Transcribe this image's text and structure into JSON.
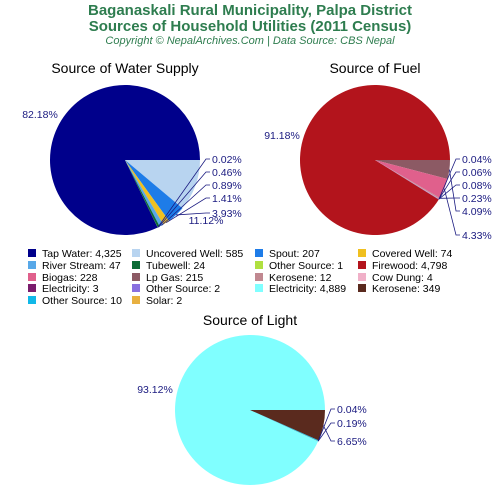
{
  "page": {
    "title_line1": "Baganaskali Rural Municipality, Palpa District",
    "title_line2": "Sources of Household Utilities (2011 Census)",
    "credit": "Copyright © NepalArchives.Com | Data Source: CBS Nepal"
  },
  "chart_data": [
    {
      "type": "pie",
      "title": "Source of Water Supply",
      "slices": [
        {
          "label": "Tap Water",
          "value": 4325,
          "percent_label": "82.18%",
          "color": "#00008b"
        },
        {
          "label": "Uncovered Well",
          "value": 585,
          "percent_label": "11.12%",
          "color": "#b8d4f0"
        },
        {
          "label": "Spout",
          "value": 207,
          "percent_label": "3.93%",
          "color": "#1e7ce8"
        },
        {
          "label": "Covered Well",
          "value": 74,
          "percent_label": "1.41%",
          "color": "#f0c020"
        },
        {
          "label": "River Stream",
          "value": 47,
          "percent_label": "0.89%",
          "color": "#58a8e8"
        },
        {
          "label": "Tubewell",
          "value": 24,
          "percent_label": "0.46%",
          "color": "#0b6b35"
        },
        {
          "label": "Other Source",
          "value": 1,
          "percent_label": "0.02%",
          "color": "#b0e040"
        }
      ]
    },
    {
      "type": "pie",
      "title": "Source of Fuel",
      "slices": [
        {
          "label": "Firewood",
          "value": 4798,
          "percent_label": "91.18%",
          "color": "#b3141c"
        },
        {
          "label": "Lp Gas",
          "value": 215,
          "percent_label": "4.09%",
          "color": "#8c5a64"
        },
        {
          "label": "Biogas",
          "value": 228,
          "percent_label": "4.33%",
          "color": "#e0608c"
        },
        {
          "label": "Kerosene",
          "value": 12,
          "percent_label": "0.23%",
          "color": "#c08890"
        },
        {
          "label": "Cow Dung",
          "value": 4,
          "percent_label": "0.08%",
          "color": "#f0b0c8"
        },
        {
          "label": "Electricity",
          "value": 3,
          "percent_label": "0.06%",
          "color": "#7a1c6c"
        },
        {
          "label": "Other Source",
          "value": 2,
          "percent_label": "0.04%",
          "color": "#8a70e0"
        }
      ]
    },
    {
      "type": "pie",
      "title": "Source of Light",
      "slices": [
        {
          "label": "Electricity",
          "value": 4889,
          "percent_label": "93.12%",
          "color": "#80ffff"
        },
        {
          "label": "Kerosene",
          "value": 349,
          "percent_label": "6.65%",
          "color": "#5a2a1e"
        },
        {
          "label": "Other Source",
          "value": 10,
          "percent_label": "0.19%",
          "color": "#10b8e8"
        },
        {
          "label": "Solar",
          "value": 2,
          "percent_label": "0.04%",
          "color": "#e8b040"
        }
      ]
    }
  ],
  "legend": [
    {
      "text": "Tap Water: 4,325",
      "color": "#00008b"
    },
    {
      "text": "Uncovered Well: 585",
      "color": "#b8d4f0"
    },
    {
      "text": "Spout: 207",
      "color": "#1e7ce8"
    },
    {
      "text": "Covered Well: 74",
      "color": "#f0c020"
    },
    {
      "text": "River Stream: 47",
      "color": "#58a8e8"
    },
    {
      "text": "Tubewell: 24",
      "color": "#0b6b35"
    },
    {
      "text": "Other Source: 1",
      "color": "#b0e040"
    },
    {
      "text": "Firewood: 4,798",
      "color": "#b3141c"
    },
    {
      "text": "Biogas: 228",
      "color": "#e0608c"
    },
    {
      "text": "Lp Gas: 215",
      "color": "#8c5a64"
    },
    {
      "text": "Kerosene: 12",
      "color": "#c08890"
    },
    {
      "text": "Cow Dung: 4",
      "color": "#f0b0c8"
    },
    {
      "text": "Electricity: 3",
      "color": "#7a1c6c"
    },
    {
      "text": "Other Source: 2",
      "color": "#8a70e0"
    },
    {
      "text": "Electricity: 4,889",
      "color": "#80ffff"
    },
    {
      "text": "Kerosene: 349",
      "color": "#5a2a1e"
    },
    {
      "text": "Other Source: 10",
      "color": "#10b8e8"
    },
    {
      "text": "Solar: 2",
      "color": "#e8b040"
    }
  ]
}
